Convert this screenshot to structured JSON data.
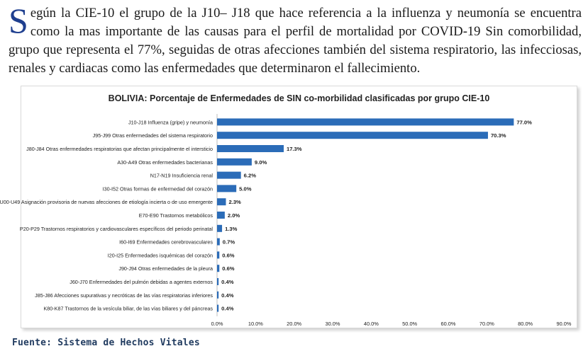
{
  "paragraph": {
    "dropcap": "S",
    "text": "egún la CIE-10 el grupo de la J10– J18 que hace referencia a la influenza y neumonía se encuentra como la mas importante de las causas para el perfil de mortalidad por COVID-19 Sin comorbilidad, grupo que representa el 77%, seguidas de otras afecciones también del sistema respiratorio, las infecciosas, renales y cardiacas como las enfermedades que determinaron el fallecimiento."
  },
  "chart_data": {
    "type": "bar",
    "orientation": "horizontal",
    "title": "BOLIVIA: Porcentaje de Enfermedades de SIN co-morbilidad clasificadas por grupo CIE-10",
    "categories": [
      "J10-J18 Influenza (gripe) y neumonía",
      "J95-J99 Otras enfermedades del sistema respiratorio",
      "J80-J84 Otras enfermedades respiratorias que afectan principalmente el intersticio",
      "A30-A49 Otras enfermedades bacterianas",
      "N17-N19 Insuficiencia renal",
      "I30-I52 Otras formas de enfermedad del corazón",
      "U00-U49 Asignación provisoria de nuevas afecciones de etiología incierta o de uso emergente",
      "E70-E90 Trastornos metabólicos",
      "P20-P29 Trastornos respiratorios y cardiovasculares específicos del periodo perinatal",
      "I60-I69 Enfermedades cerebrovasculares",
      "I20-I25 Enfermedades isquémicas del corazón",
      "J90-J94 Otras enfermedades de la pleura",
      "J60-J70 Enfermedades del pulmón debidas a agentes externos",
      "J85-J86 Afecciones supurativas y necróticas de las vías respiratorias inferiores",
      "K80-K87 Trastornos de la vesícula biliar, de las vías biliares y del páncreas"
    ],
    "values": [
      77.0,
      70.3,
      17.3,
      9.0,
      6.2,
      5.0,
      2.3,
      2.0,
      1.3,
      0.7,
      0.6,
      0.6,
      0.4,
      0.4,
      0.4
    ],
    "value_labels": [
      "77.0%",
      "70.3%",
      "17.3%",
      "9.0%",
      "6.2%",
      "5.0%",
      "2.3%",
      "2.0%",
      "1.3%",
      "0.7%",
      "0.6%",
      "0.6%",
      "0.4%",
      "0.4%",
      "0.4%"
    ],
    "xlim": [
      0,
      90
    ],
    "xticks": [
      "0.0%",
      "10.0%",
      "20.0%",
      "30.0%",
      "40.0%",
      "50.0%",
      "60.0%",
      "70.0%",
      "80.0%",
      "90.0%"
    ],
    "bar_color": "#2b6cb8",
    "grid": false
  },
  "source": "Fuente: Sistema de Hechos Vitales",
  "colors": {
    "dropcap": "#1f3f8f",
    "source": "#1f3a5f"
  }
}
